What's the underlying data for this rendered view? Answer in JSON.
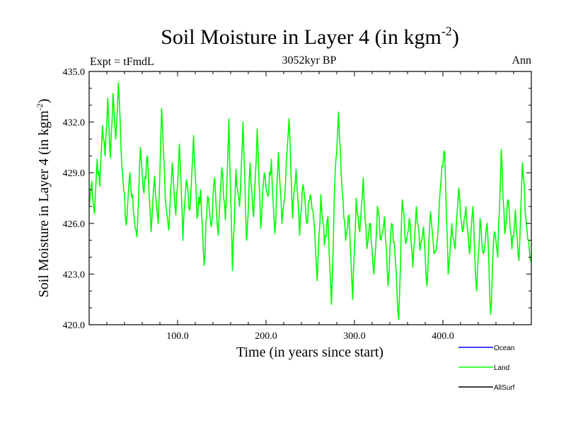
{
  "chart_data": {
    "type": "line",
    "title": "Soil Moisture in Layer 4 (in kgm",
    "title_superscript": "-2",
    "title_close": ")",
    "subtitle": "3052kyr BP",
    "left_label": "Expt = tFmdL",
    "right_label": "Ann",
    "xlabel": "Time (in years since start)",
    "ylabel": "Soil Moisture in Layer 4 (in kgm",
    "ylabel_superscript": "-2",
    "ylabel_close": ")",
    "xlim": [
      0,
      500
    ],
    "ylim": [
      420,
      435
    ],
    "x_ticks": [
      100,
      200,
      300,
      400
    ],
    "x_tick_labels": [
      "100.0",
      "200.0",
      "300.0",
      "400.0"
    ],
    "y_ticks": [
      420,
      423,
      426,
      429,
      432,
      435
    ],
    "y_tick_labels": [
      "420.0",
      "423.0",
      "426.0",
      "429.0",
      "432.0",
      "435.0"
    ],
    "legend": [
      {
        "name": "Ocean",
        "color": "#0000ff"
      },
      {
        "name": "Land",
        "color": "#00ff00"
      },
      {
        "name": "AllSurf",
        "color": "#000000"
      }
    ],
    "series": [
      {
        "name": "Land",
        "color": "#00ff00",
        "anchors": [
          [
            0,
            427.0
          ],
          [
            3,
            428.5
          ],
          [
            6,
            426.6
          ],
          [
            9,
            429.8
          ],
          [
            12,
            428.2
          ],
          [
            15,
            431.8
          ],
          [
            18,
            430.0
          ],
          [
            21,
            433.4
          ],
          [
            24,
            429.9
          ],
          [
            27,
            433.7
          ],
          [
            30,
            431.0
          ],
          [
            33,
            434.3
          ],
          [
            36,
            430.5
          ],
          [
            39,
            428.0
          ],
          [
            42,
            425.9
          ],
          [
            46,
            429.0
          ],
          [
            50,
            426.7
          ],
          [
            54,
            425.2
          ],
          [
            58,
            430.5
          ],
          [
            62,
            427.8
          ],
          [
            66,
            430.0
          ],
          [
            70,
            425.5
          ],
          [
            74,
            428.8
          ],
          [
            78,
            426.0
          ],
          [
            82,
            432.8
          ],
          [
            86,
            427.6
          ],
          [
            90,
            425.6
          ],
          [
            94,
            429.6
          ],
          [
            98,
            426.5
          ],
          [
            102,
            430.7
          ],
          [
            106,
            425.0
          ],
          [
            110,
            428.6
          ],
          [
            114,
            426.8
          ],
          [
            118,
            431.2
          ],
          [
            122,
            426.3
          ],
          [
            126,
            428.0
          ],
          [
            130,
            423.5
          ],
          [
            134,
            427.6
          ],
          [
            138,
            425.8
          ],
          [
            142,
            428.7
          ],
          [
            146,
            425.3
          ],
          [
            150,
            429.3
          ],
          [
            154,
            426.2
          ],
          [
            158,
            432.2
          ],
          [
            162,
            423.2
          ],
          [
            166,
            429.2
          ],
          [
            170,
            427.0
          ],
          [
            174,
            432.0
          ],
          [
            178,
            425.0
          ],
          [
            182,
            429.6
          ],
          [
            186,
            426.4
          ],
          [
            190,
            431.6
          ],
          [
            194,
            425.7
          ],
          [
            198,
            429.0
          ],
          [
            202,
            427.6
          ],
          [
            206,
            429.8
          ],
          [
            210,
            425.4
          ],
          [
            214,
            430.2
          ],
          [
            218,
            426.0
          ],
          [
            222,
            428.4
          ],
          [
            226,
            432.2
          ],
          [
            230,
            426.3
          ],
          [
            234,
            429.2
          ],
          [
            238,
            425.3
          ],
          [
            242,
            428.3
          ],
          [
            246,
            426.0
          ],
          [
            250,
            427.7
          ],
          [
            254,
            426.2
          ],
          [
            258,
            422.6
          ],
          [
            262,
            427.7
          ],
          [
            266,
            424.7
          ],
          [
            270,
            426.4
          ],
          [
            274,
            421.2
          ],
          [
            278,
            428.8
          ],
          [
            282,
            432.6
          ],
          [
            286,
            428.0
          ],
          [
            290,
            425.0
          ],
          [
            294,
            426.5
          ],
          [
            298,
            421.5
          ],
          [
            302,
            427.5
          ],
          [
            306,
            425.5
          ],
          [
            310,
            428.7
          ],
          [
            314,
            424.5
          ],
          [
            318,
            426.0
          ],
          [
            322,
            423.0
          ],
          [
            326,
            427.0
          ],
          [
            330,
            425.0
          ],
          [
            334,
            426.4
          ],
          [
            338,
            422.3
          ],
          [
            342,
            426.0
          ],
          [
            346,
            424.0
          ],
          [
            350,
            420.3
          ],
          [
            354,
            427.4
          ],
          [
            358,
            424.8
          ],
          [
            362,
            426.3
          ],
          [
            366,
            423.4
          ],
          [
            370,
            427.0
          ],
          [
            374,
            424.4
          ],
          [
            378,
            425.8
          ],
          [
            382,
            422.3
          ],
          [
            386,
            426.7
          ],
          [
            390,
            424.2
          ],
          [
            394,
            425.2
          ],
          [
            398,
            428.6
          ],
          [
            402,
            430.3
          ],
          [
            406,
            423.0
          ],
          [
            410,
            426.0
          ],
          [
            414,
            424.5
          ],
          [
            418,
            428.1
          ],
          [
            422,
            425.5
          ],
          [
            426,
            427.0
          ],
          [
            430,
            424.2
          ],
          [
            434,
            427.0
          ],
          [
            438,
            422.0
          ],
          [
            442,
            426.3
          ],
          [
            446,
            424.2
          ],
          [
            450,
            426.0
          ],
          [
            454,
            420.6
          ],
          [
            458,
            425.5
          ],
          [
            462,
            424.0
          ],
          [
            466,
            430.4
          ],
          [
            470,
            425.4
          ],
          [
            474,
            427.4
          ],
          [
            478,
            424.5
          ],
          [
            482,
            426.8
          ],
          [
            486,
            423.8
          ],
          [
            490,
            429.6
          ],
          [
            494,
            426.2
          ],
          [
            497,
            425.0
          ],
          [
            500,
            423.7
          ]
        ]
      }
    ]
  }
}
